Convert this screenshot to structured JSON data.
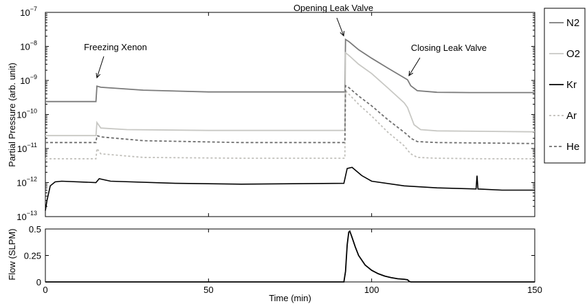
{
  "chart_data": [
    {
      "type": "line",
      "ylabel": "Partial Pressure (arb. unit)",
      "yscale": "log",
      "ylim": [
        1e-13,
        1e-07
      ],
      "xlim": [
        0,
        150
      ],
      "ytick_base": "10",
      "yticks": [
        {
          "value": 1e-07,
          "exp": "−7"
        },
        {
          "value": 1e-08,
          "exp": "−8"
        },
        {
          "value": 1e-09,
          "exp": "−9"
        },
        {
          "value": 1e-10,
          "exp": "−10"
        },
        {
          "value": 1e-11,
          "exp": "−11"
        },
        {
          "value": 1e-12,
          "exp": "−12"
        },
        {
          "value": 1e-13,
          "exp": "−13"
        }
      ],
      "annotations": [
        {
          "text": "Freezing Xenon",
          "x": 16,
          "y": 7e-10
        },
        {
          "text": "Opening Leak Valve",
          "x": 92,
          "y": 1.6e-08
        },
        {
          "text": "Closing Leak Valve",
          "x": 111,
          "y": 1.2e-09
        }
      ],
      "legend": "outside-right",
      "series": [
        {
          "name": "N2",
          "color": "#7a7a7a",
          "dash": "solid",
          "x": [
            0,
            15.5,
            15.8,
            17,
            30,
            50,
            70,
            91.8,
            92,
            93,
            96,
            100,
            105,
            110,
            111,
            112,
            114,
            120,
            130,
            140,
            150
          ],
          "y": [
            2.4e-10,
            2.4e-10,
            6.8e-10,
            6.3e-10,
            5.2e-10,
            4.6e-10,
            4.6e-10,
            4.6e-10,
            1.6e-08,
            1.4e-08,
            8e-09,
            4.5e-09,
            2.3e-09,
            1.2e-09,
            1.05e-09,
            7e-10,
            5e-10,
            4.5e-10,
            4.4e-10,
            4.4e-10,
            4.4e-10
          ]
        },
        {
          "name": "O2",
          "color": "#c8c8c4",
          "dash": "solid",
          "x": [
            0,
            15.5,
            15.8,
            17,
            25,
            50,
            91.8,
            92,
            93,
            96,
            100,
            105,
            110,
            111,
            112,
            113,
            115,
            120,
            135,
            150
          ],
          "y": [
            2.4e-11,
            2.4e-11,
            5.8e-11,
            4e-11,
            3.6e-11,
            3.4e-11,
            3.4e-11,
            6.5e-09,
            5.5e-09,
            3e-09,
            1.6e-09,
            6e-10,
            2.2e-10,
            1.6e-10,
            9e-11,
            5e-11,
            3.6e-11,
            3.3e-11,
            3.2e-11,
            3.1e-11
          ]
        },
        {
          "name": "Kr",
          "color": "#000000",
          "dash": "solid",
          "x": [
            0,
            0.5,
            1.5,
            3,
            5,
            15.5,
            16.5,
            20,
            40,
            60,
            91.5,
            92.5,
            94,
            97,
            100,
            110,
            120,
            132,
            132.3,
            132.6,
            140,
            150
          ],
          "y": [
            1.5e-13,
            3e-13,
            8e-13,
            1.05e-12,
            1.1e-12,
            1e-12,
            1.3e-12,
            1.1e-12,
            9.5e-13,
            9e-13,
            9.5e-13,
            2.6e-12,
            2.8e-12,
            1.6e-12,
            1.1e-12,
            8e-13,
            7e-13,
            6.5e-13,
            1.6e-12,
            6.5e-13,
            6e-13,
            6e-13
          ]
        },
        {
          "name": "Ar",
          "color": "#c0bfba",
          "dash": "3,3",
          "x": [
            0,
            15.5,
            15.8,
            17,
            30,
            60,
            91.8,
            92,
            93,
            96,
            100,
            105,
            110,
            111,
            112,
            114,
            120,
            135,
            150
          ],
          "y": [
            5e-12,
            5e-12,
            1e-11,
            7e-12,
            5.5e-12,
            5.2e-12,
            5.2e-12,
            5e-10,
            4e-10,
            2e-10,
            9e-11,
            3e-11,
            1.2e-11,
            9e-12,
            7e-12,
            5.5e-12,
            5.2e-12,
            5e-12,
            5e-12
          ]
        },
        {
          "name": "He",
          "color": "#6e6e6e",
          "dash": "4,3",
          "x": [
            0,
            15.5,
            15.8,
            17,
            30,
            60,
            91.8,
            92,
            93,
            96,
            100,
            105,
            110,
            111,
            112,
            114,
            120,
            135,
            150
          ],
          "y": [
            1.5e-11,
            1.5e-11,
            2.4e-11,
            2.2e-11,
            1.7e-11,
            1.5e-11,
            1.5e-11,
            7e-10,
            6.2e-10,
            3.5e-10,
            1.8e-10,
            7e-11,
            3e-11,
            2.5e-11,
            2e-11,
            1.6e-11,
            1.5e-11,
            1.45e-11,
            1.4e-11
          ]
        }
      ]
    },
    {
      "type": "line",
      "ylabel": "Flow (SLPM)",
      "xlabel": "Time (min)",
      "xlim": [
        0,
        150
      ],
      "ylim": [
        0,
        0.5
      ],
      "xticks": [
        {
          "value": 0,
          "label": "0"
        },
        {
          "value": 50,
          "label": "50"
        },
        {
          "value": 100,
          "label": "100"
        },
        {
          "value": 150,
          "label": "150"
        }
      ],
      "yticks": [
        {
          "value": 0,
          "label": "0"
        },
        {
          "value": 0.25,
          "label": "0.25"
        },
        {
          "value": 0.5,
          "label": "0.5"
        }
      ],
      "series": [
        {
          "color": "#000000",
          "x": [
            0,
            91.5,
            92,
            92.5,
            93,
            93.3,
            94,
            95,
            96,
            98,
            100,
            102,
            104,
            106,
            108,
            110,
            111,
            111.5,
            112,
            150
          ],
          "y": [
            0,
            0,
            0.1,
            0.35,
            0.47,
            0.48,
            0.42,
            0.33,
            0.25,
            0.16,
            0.11,
            0.078,
            0.055,
            0.04,
            0.03,
            0.025,
            0.02,
            0.005,
            0,
            0
          ]
        }
      ]
    }
  ]
}
